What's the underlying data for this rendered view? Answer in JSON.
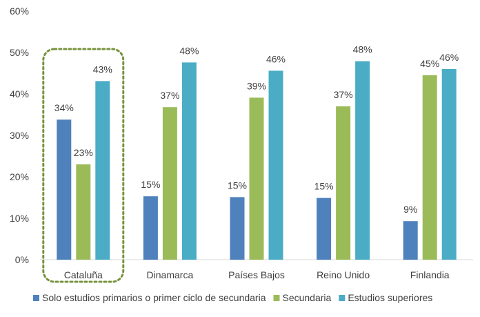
{
  "chart_data": {
    "type": "bar",
    "title": "",
    "xlabel": "",
    "ylabel": "",
    "ylim": [
      0,
      60
    ],
    "y_ticks": [
      "0%",
      "10%",
      "20%",
      "30%",
      "40%",
      "50%",
      "60%"
    ],
    "y_tick_values": [
      0,
      10,
      20,
      30,
      40,
      50,
      60
    ],
    "categories": [
      "Cataluña",
      "Dinamarca",
      "Países Bajos",
      "Reino Unido",
      "Finlandia"
    ],
    "highlighted_category": "Cataluña",
    "series": [
      {
        "name": "Solo estudios primarios o primer ciclo de secundaria",
        "color": "#4f81bd",
        "values": [
          33.8,
          15.3,
          15.1,
          14.9,
          9.3
        ],
        "labels": [
          "34%",
          "15%",
          "15%",
          "15%",
          "9%"
        ]
      },
      {
        "name": "Secundaria",
        "color": "#9bbb59",
        "values": [
          23.0,
          36.8,
          39.1,
          37.0,
          44.5
        ],
        "labels": [
          "23%",
          "37%",
          "39%",
          "37%",
          "45%"
        ]
      },
      {
        "name": "Estudios superiores",
        "color": "#4bacc6",
        "values": [
          43.1,
          47.6,
          45.6,
          47.9,
          46.0
        ],
        "labels": [
          "43%",
          "48%",
          "46%",
          "48%",
          "46%"
        ]
      }
    ],
    "grid": false,
    "legend_position": "bottom",
    "highlight_color": "#77933c"
  }
}
